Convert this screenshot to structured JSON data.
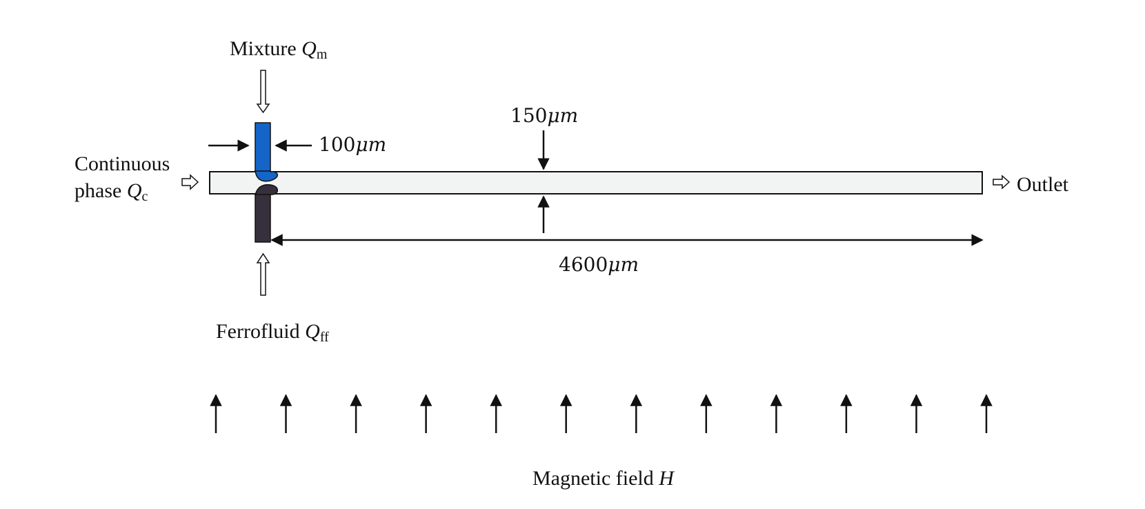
{
  "labels": {
    "mixture": {
      "text": "Mixture ",
      "symbol": "Q",
      "subscript": "m"
    },
    "continuous_line1": "Continuous",
    "continuous_line2": {
      "text": "phase ",
      "symbol": "Q",
      "subscript": "c"
    },
    "ferrofluid": {
      "text": "Ferrofluid ",
      "symbol": "Q",
      "subscript": "ff"
    },
    "outlet": "Outlet",
    "magnetic_field": {
      "text": "Magnetic field ",
      "symbol": "H"
    }
  },
  "dimensions": {
    "inlet_width": {
      "value": "100",
      "unit": "μm"
    },
    "channel_height": {
      "value": "150",
      "unit": "μm"
    },
    "channel_length": {
      "value": "4600",
      "unit": "μm"
    }
  },
  "field_arrow_count": 12,
  "colors": {
    "mixture_inlet": "#1565c8",
    "ferrofluid_inlet": "#35303c",
    "channel_fill": "#f2f4f3",
    "stroke": "#111111"
  }
}
